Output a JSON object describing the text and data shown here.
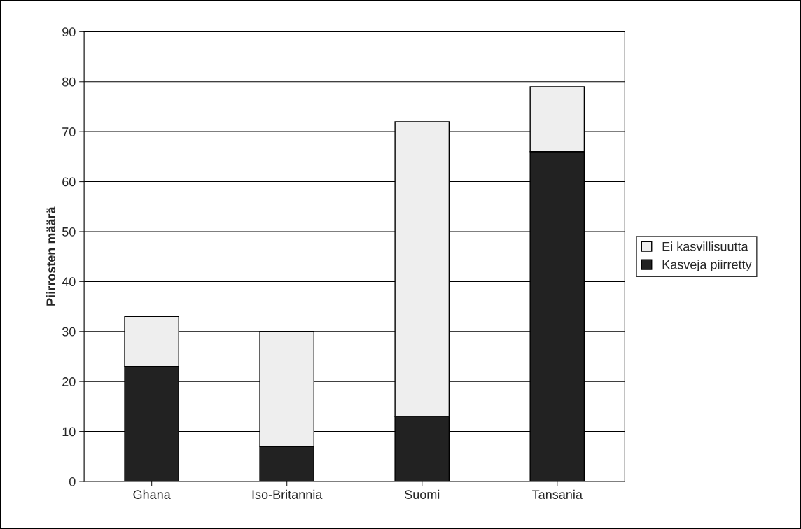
{
  "chart_data": {
    "type": "bar",
    "ylabel": "Piirrosten määrä",
    "categories": [
      "Ghana",
      "Iso-Britannia",
      "Suomi",
      "Tansania"
    ],
    "series": [
      {
        "name": "Kasveja piirretty",
        "color": "#222222",
        "values": [
          23,
          7,
          13,
          66
        ]
      },
      {
        "name": "Ei kasvillisuutta",
        "color": "#eeeeee",
        "values": [
          10,
          23,
          59,
          13
        ]
      }
    ],
    "stacked": true,
    "ylim": [
      0,
      90
    ],
    "yticks": [
      0,
      10,
      20,
      30,
      40,
      50,
      60,
      70,
      80,
      90
    ],
    "grid": "y",
    "legend": "right"
  }
}
